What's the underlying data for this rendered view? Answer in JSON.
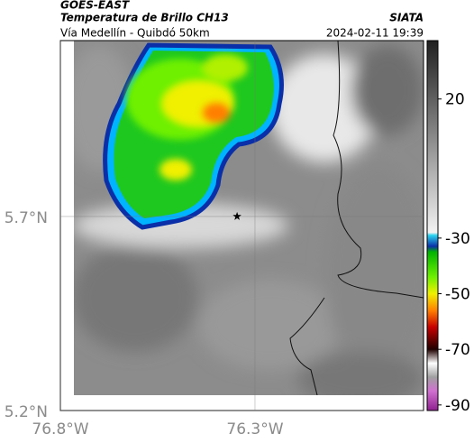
{
  "header": {
    "source": "GOES-EAST",
    "product": "Temperatura de Brillo CH13",
    "route": "Vía Medellín - Quibdó 50km",
    "brand": "SIATA",
    "datetime": "2024-02-11 19:39"
  },
  "map": {
    "xlim": [
      -76.8,
      -75.867
    ],
    "ylim": [
      5.2,
      6.153
    ],
    "xticks": [
      {
        "value": -76.8,
        "label": "76.8°W"
      },
      {
        "value": -76.3,
        "label": "76.3°W"
      }
    ],
    "yticks": [
      {
        "value": 5.7,
        "label": "5.7°N"
      },
      {
        "value": 5.2,
        "label": "5.2°N"
      }
    ],
    "marker": {
      "lon": -76.346,
      "lat": 5.7
    }
  },
  "colorbar": {
    "clim": [
      -92,
      41
    ],
    "ticks": [
      20,
      -30,
      -50,
      -70,
      -90
    ],
    "stops": [
      {
        "value": 41,
        "color": "#202020"
      },
      {
        "value": -28,
        "color": "#f2f2f2"
      },
      {
        "value": -29,
        "color": "#2ad4f0"
      },
      {
        "value": -33,
        "color": "#0a2fa8"
      },
      {
        "value": -35,
        "color": "#00b400"
      },
      {
        "value": -44,
        "color": "#6ef000"
      },
      {
        "value": -50,
        "color": "#f0f000"
      },
      {
        "value": -56,
        "color": "#ff8000"
      },
      {
        "value": -62,
        "color": "#c80000"
      },
      {
        "value": -70,
        "color": "#200000"
      },
      {
        "value": -75,
        "color": "#ffffff"
      },
      {
        "value": -80,
        "color": "#a0a0a0"
      },
      {
        "value": -85,
        "color": "#d070d0"
      },
      {
        "value": -92,
        "color": "#902090"
      }
    ]
  }
}
